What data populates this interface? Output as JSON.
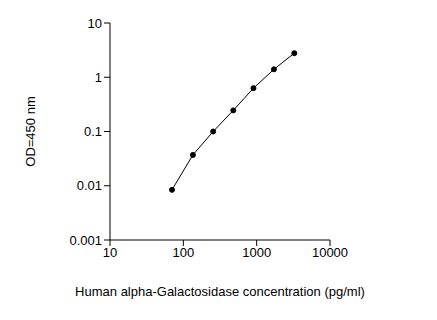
{
  "chart_data": {
    "type": "line",
    "x_label": "Human alpha-Galactosidase concentration (pg/ml)",
    "y_label": "OD=450 nm",
    "x": [
      70,
      135,
      255,
      480,
      905,
      1720,
      3260
    ],
    "values": [
      0.0084,
      0.037,
      0.1,
      0.245,
      0.63,
      1.4,
      2.78
    ],
    "xlim": [
      10,
      10000
    ],
    "ylim": [
      0.001,
      10
    ],
    "xticks": [
      10,
      100,
      1000,
      10000
    ],
    "yticks": [
      0.001,
      0.01,
      0.1,
      1,
      10
    ],
    "log": true,
    "grid": false,
    "color": "#000000",
    "marker": "circle",
    "line_style": "solid"
  }
}
